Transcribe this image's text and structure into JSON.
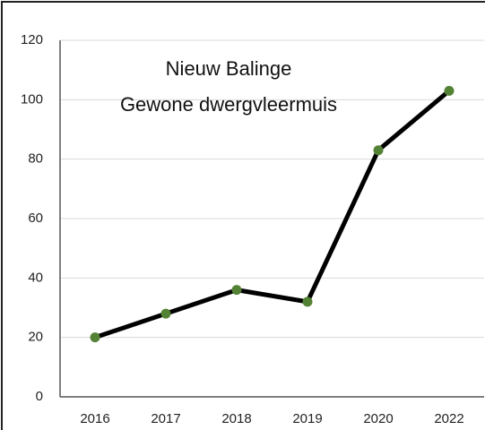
{
  "chart_data": {
    "type": "line",
    "title": [
      "Nieuw Balinge",
      "Gewone dwergvleermuis"
    ],
    "categories": [
      "2016",
      "2017",
      "2018",
      "2019",
      "2020",
      "2022"
    ],
    "series": [
      {
        "name": null,
        "color": "#000000",
        "marker_color": "#548235",
        "values": [
          20,
          28,
          36,
          32,
          83,
          103
        ]
      }
    ],
    "ylim": [
      0,
      120
    ],
    "yticks": [
      0,
      20,
      40,
      60,
      80,
      100,
      120
    ],
    "grid": true
  }
}
